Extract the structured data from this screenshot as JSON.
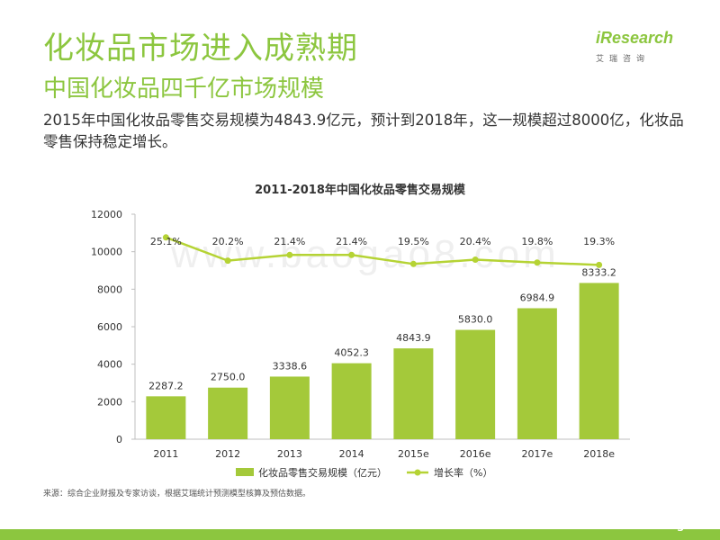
{
  "header": {
    "title": "化妆品市场进入成熟期",
    "subtitle": "中国化妆品四千亿市场规模",
    "logo": "iResearch",
    "logo_sub": "艾瑞咨询"
  },
  "summary": "2015年中国化妆品零售交易规模为4843.9亿元，预计到2018年，这一规模超过8000亿，化妆品零售保持稳定增长。",
  "watermark": "www.baogao8.com",
  "source": "来源：综合企业财报及专家访谈，根据艾瑞统计预测模型核算及预估数据。",
  "page_number": "3",
  "colors": {
    "accent": "#8cc63f",
    "bar": "#a4c93a",
    "line": "#b5d334"
  },
  "chart_data": {
    "type": "bar",
    "title": "2011-2018年中国化妆品零售交易规模",
    "categories": [
      "2011",
      "2012",
      "2013",
      "2014",
      "2015e",
      "2016e",
      "2017e",
      "2018e"
    ],
    "ylim": [
      0,
      12000
    ],
    "yticks": [
      "0",
      "2000",
      "4000",
      "6000",
      "8000",
      "10000",
      "12000"
    ],
    "series": [
      {
        "name": "化妆品零售交易规模（亿元）",
        "type": "bar",
        "values": [
          2287.2,
          2750.0,
          3338.6,
          4052.3,
          4843.9,
          5830.0,
          6984.9,
          8333.2
        ],
        "labels": [
          "2287.2",
          "2750.0",
          "3338.6",
          "4052.3",
          "4843.9",
          "5830.0",
          "6984.9",
          "8333.2"
        ]
      },
      {
        "name": "增长率（%）",
        "type": "line",
        "values": [
          25.1,
          20.2,
          21.4,
          21.4,
          19.5,
          20.4,
          19.8,
          19.3
        ],
        "labels": [
          "25.1%",
          "20.2%",
          "21.4%",
          "21.4%",
          "19.5%",
          "20.4%",
          "19.8%",
          "19.3%"
        ]
      }
    ],
    "legend_position": "bottom",
    "grid": false
  }
}
